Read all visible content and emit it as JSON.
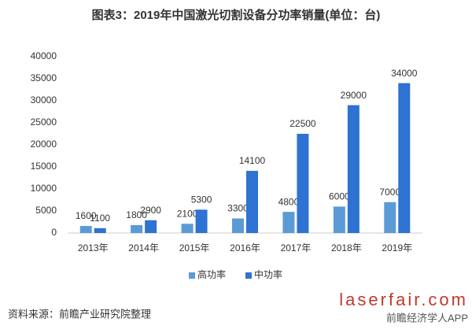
{
  "chart_data": {
    "type": "bar",
    "title": "图表3：2019年中国激光切割设备分功率销量(单位：台)",
    "categories": [
      "2013年",
      "2014年",
      "2015年",
      "2016年",
      "2017年",
      "2018年",
      "2019年"
    ],
    "series": [
      {
        "name": "高功率",
        "color": "#5b9bd5",
        "values": [
          1600,
          1800,
          2100,
          3300,
          4800,
          6000,
          7000
        ]
      },
      {
        "name": "中功率",
        "color": "#2e72d2",
        "values": [
          1100,
          2900,
          5300,
          14100,
          22500,
          29000,
          34000
        ]
      }
    ],
    "ylim": [
      0,
      40000
    ],
    "yticks": [
      0,
      5000,
      10000,
      15000,
      20000,
      25000,
      30000,
      35000,
      40000
    ],
    "grid": false,
    "legend": "bottom",
    "source": "资料来源：前瞻产业研究院整理",
    "watermarks": [
      "laserfair.com",
      "前瞻经济学人APP"
    ]
  }
}
